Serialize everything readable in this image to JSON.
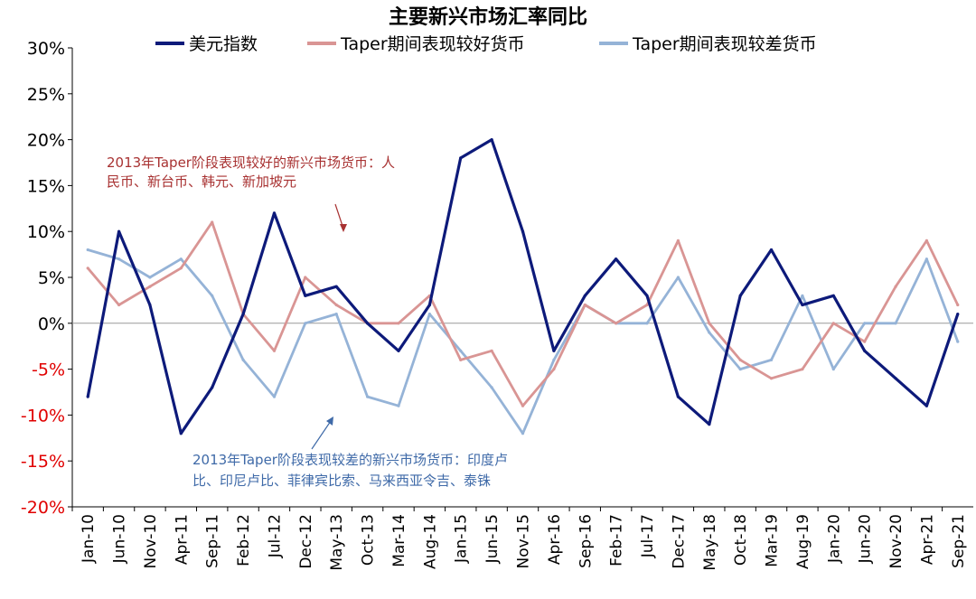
{
  "chart_data": {
    "type": "line",
    "title": "主要新兴市场汇率同比",
    "x": [
      "Jan-10",
      "Jun-10",
      "Nov-10",
      "Apr-11",
      "Sep-11",
      "Feb-12",
      "Jul-12",
      "Dec-12",
      "May-13",
      "Oct-13",
      "Mar-14",
      "Aug-14",
      "Jan-15",
      "Jun-15",
      "Nov-15",
      "Apr-16",
      "Sep-16",
      "Feb-17",
      "Jul-17",
      "Dec-17",
      "May-18",
      "Oct-18",
      "Mar-19",
      "Aug-19",
      "Jan-20",
      "Jun-20",
      "Nov-20",
      "Apr-21",
      "Sep-21"
    ],
    "ylim": [
      -20,
      30
    ],
    "yticks": [
      30,
      25,
      20,
      15,
      10,
      5,
      0,
      -5,
      -10,
      -15,
      -20
    ],
    "ytick_labels": [
      "30%",
      "25%",
      "20%",
      "15%",
      "10%",
      "5%",
      "0%",
      "-5%",
      "-10%",
      "-15%",
      "-20%"
    ],
    "grid": false,
    "legend_position": "top",
    "series": [
      {
        "name": "美元指数",
        "color": "#0d1a7a",
        "values": [
          -8,
          10,
          2,
          -12,
          -7,
          1,
          12,
          3,
          4,
          0,
          -3,
          2,
          18,
          20,
          10,
          -3,
          3,
          7,
          3,
          -8,
          -11,
          3,
          8,
          2,
          3,
          -3,
          -6,
          -9,
          1
        ]
      },
      {
        "name": "Taper期间表现较好货币",
        "color": "#d99594",
        "values": [
          6,
          2,
          4,
          6,
          11,
          1,
          -3,
          5,
          2,
          0,
          0,
          3,
          -4,
          -3,
          -9,
          -5,
          2,
          0,
          2,
          9,
          0,
          -4,
          -6,
          -5,
          0,
          -2,
          4,
          9,
          2
        ]
      },
      {
        "name": "Taper期间表现较差货币",
        "color": "#95b3d7",
        "values": [
          8,
          7,
          5,
          7,
          3,
          -4,
          -8,
          0,
          1,
          -8,
          -9,
          1,
          -3,
          -7,
          -12,
          -4,
          2,
          0,
          0,
          5,
          -1,
          -5,
          -4,
          3,
          -5,
          0,
          0,
          7,
          -2
        ]
      }
    ],
    "annotations": [
      {
        "lines": [
          "2013年Taper阶段表现较好的新兴市场货币：人",
          "民币、新台币、韩元、新加坡元"
        ],
        "color": "#a83232"
      },
      {
        "lines": [
          "2013年Taper阶段表现较差的新兴市场货币：印度卢",
          "比、印尼卢比、菲律宾比索、马来西亚令吉、泰铢"
        ],
        "color": "#3f6aa8"
      }
    ]
  }
}
